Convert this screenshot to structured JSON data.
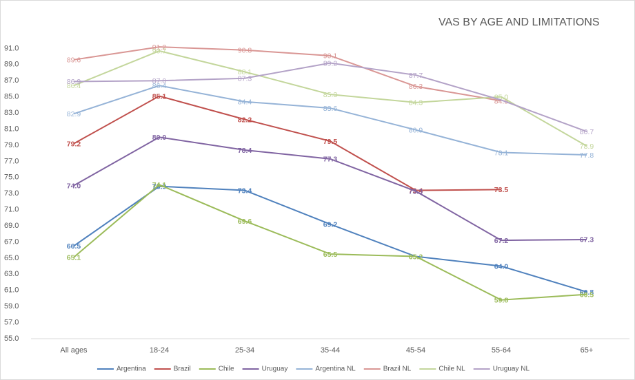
{
  "chart_data": {
    "type": "line",
    "title": "VAS  BY AGE AND LIMITATIONS",
    "categories": [
      "All ages",
      "18-24",
      "25-34",
      "35-44",
      "45-54",
      "55-64",
      "65+"
    ],
    "ylim": [
      55,
      93
    ],
    "yticks": [
      {
        "value": 55,
        "label": "55.0"
      },
      {
        "value": 57,
        "label": "57.0"
      },
      {
        "value": 59,
        "label": "59.0"
      },
      {
        "value": 61,
        "label": "61.0"
      },
      {
        "value": 63,
        "label": "63.0"
      },
      {
        "value": 65,
        "label": "65.0"
      },
      {
        "value": 67,
        "label": "67.0"
      },
      {
        "value": 69,
        "label": "69.0"
      },
      {
        "value": 71,
        "label": "71.0"
      },
      {
        "value": 73,
        "label": "73.0"
      },
      {
        "value": 75,
        "label": "75.0"
      },
      {
        "value": 77,
        "label": "77.0"
      },
      {
        "value": 79,
        "label": "79.0"
      },
      {
        "value": 81,
        "label": "81.0"
      },
      {
        "value": 83,
        "label": "83.0"
      },
      {
        "value": 85,
        "label": "85.0"
      },
      {
        "value": 87,
        "label": "87.0"
      },
      {
        "value": 89,
        "label": "89.0"
      },
      {
        "value": 91,
        "label": "91.0"
      }
    ],
    "legend": "bottom",
    "series": [
      {
        "name": "Argentina",
        "color": "#4f81bd",
        "bold": true,
        "values": [
          66.5,
          73.9,
          73.4,
          69.2,
          65.2,
          64.0,
          60.8
        ],
        "value_labels": [
          "66.5",
          "73.9",
          "73.4",
          "69.2",
          null,
          "64.0",
          "60.8"
        ]
      },
      {
        "name": "Brazil",
        "color": "#c0504d",
        "bold": true,
        "values": [
          79.2,
          85.1,
          82.2,
          79.5,
          73.4,
          73.5,
          null
        ],
        "value_labels": [
          "79.2",
          "85.1",
          "82.2",
          "79.5",
          "73.4",
          "73.5",
          null
        ]
      },
      {
        "name": "Chile",
        "color": "#9bbb59",
        "bold": true,
        "values": [
          65.1,
          74.1,
          69.6,
          65.5,
          65.2,
          59.8,
          60.5
        ],
        "value_labels": [
          "65.1",
          "74.1",
          "69.6",
          "65.5",
          "65.2",
          "59.8",
          "60.5"
        ]
      },
      {
        "name": "Uruguay",
        "color": "#8064a2",
        "bold": true,
        "values": [
          74.0,
          80.0,
          78.4,
          77.3,
          73.3,
          67.2,
          67.3
        ],
        "value_labels": [
          "74.0",
          "80.0",
          "78.4",
          "77.3",
          "73.3",
          "67.2",
          "67.3"
        ]
      },
      {
        "name": "Argentina NL",
        "color": "#95b3d7",
        "bold": false,
        "values": [
          82.9,
          86.4,
          84.4,
          83.6,
          80.9,
          78.1,
          77.8
        ],
        "value_labels": [
          "82.9",
          "86.4",
          "84.4",
          "83.6",
          "80.9",
          "78.1",
          "77.8"
        ]
      },
      {
        "name": "Brazil NL",
        "color": "#d99694",
        "bold": false,
        "values": [
          89.6,
          91.2,
          90.8,
          90.1,
          86.3,
          84.5,
          null
        ],
        "value_labels": [
          "89.6",
          "91.2",
          "90.8",
          "90.1",
          "86.3",
          "84.5",
          null
        ]
      },
      {
        "name": "Chile NL",
        "color": "#c3d69b",
        "bold": false,
        "values": [
          86.4,
          90.7,
          88.1,
          85.3,
          84.3,
          85.0,
          78.9
        ],
        "value_labels": [
          "86.4",
          "90.7",
          "88.1",
          "85.3",
          "84.3",
          "85.0",
          "78.9"
        ]
      },
      {
        "name": "Uruguay NL",
        "color": "#b3a2c7",
        "bold": false,
        "values": [
          86.9,
          87.0,
          87.3,
          89.2,
          87.7,
          84.6,
          80.7
        ],
        "value_labels": [
          "86.9",
          "87.0",
          "87.3",
          "89.2",
          "87.7",
          null,
          "80.7"
        ]
      }
    ]
  }
}
